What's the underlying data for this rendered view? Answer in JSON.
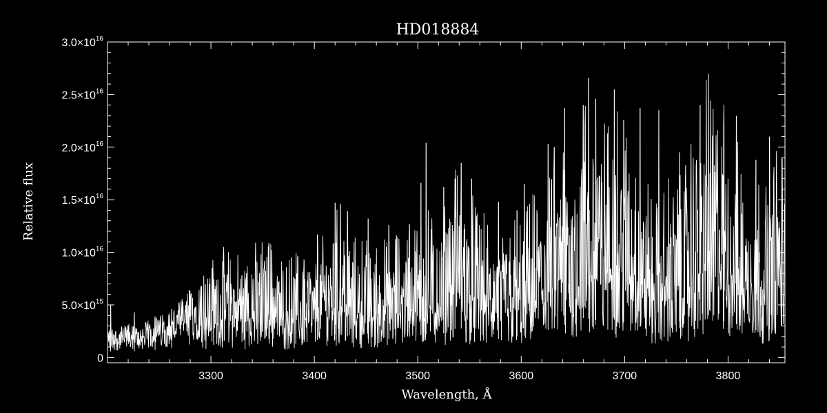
{
  "chart_data": {
    "type": "line",
    "title": "HD018884",
    "xlabel": "Wavelength, Å",
    "ylabel": "Relative flux",
    "xlim": [
      3200,
      3855
    ],
    "ylim": [
      -500000000000000.0,
      3e+16
    ],
    "x_ticks": [
      3300,
      3400,
      3500,
      3600,
      3700,
      3800
    ],
    "x_tick_labels": [
      "3300",
      "3400",
      "3500",
      "3600",
      "3700",
      "3800"
    ],
    "y_ticks": [
      0,
      5000000000000000.0,
      1e+16,
      1.5e+16,
      2e+16,
      2.5e+16,
      3e+16
    ],
    "y_tick_labels": [
      {
        "mantissa": "0",
        "times": "",
        "exp": ""
      },
      {
        "mantissa": "5.0",
        "times": "×10",
        "exp": "15"
      },
      {
        "mantissa": "1.0",
        "times": "×10",
        "exp": "16"
      },
      {
        "mantissa": "1.5",
        "times": "×10",
        "exp": "16"
      },
      {
        "mantissa": "2.0",
        "times": "×10",
        "exp": "16"
      },
      {
        "mantissa": "2.5",
        "times": "×10",
        "exp": "16"
      },
      {
        "mantissa": "3.0",
        "times": "×10",
        "exp": "16"
      }
    ],
    "series": [
      {
        "values_unit": "relative flux",
        "x": [
          3200,
          3210,
          3220,
          3230,
          3240,
          3250,
          3260,
          3270,
          3280,
          3290,
          3300,
          3310,
          3320,
          3330,
          3340,
          3350,
          3360,
          3370,
          3380,
          3390,
          3400,
          3410,
          3420,
          3430,
          3440,
          3450,
          3460,
          3470,
          3480,
          3490,
          3500,
          3510,
          3520,
          3530,
          3540,
          3550,
          3560,
          3570,
          3580,
          3590,
          3600,
          3610,
          3620,
          3630,
          3640,
          3650,
          3660,
          3670,
          3680,
          3690,
          3700,
          3710,
          3720,
          3730,
          3740,
          3750,
          3760,
          3770,
          3780,
          3790,
          3800,
          3810,
          3820,
          3830,
          3840,
          3850,
          3855
        ],
        "y": [
          2000000000000000.0,
          1800000000000000.0,
          2100000000000000.0,
          1900000000000000.0,
          2300000000000000.0,
          2600000000000000.0,
          2900000000000000.0,
          3500000000000000.0,
          4200000000000000.0,
          4800000000000000.0,
          5000000000000000.0,
          5300000000000000.0,
          5500000000000000.0,
          5000000000000000.0,
          5400000000000000.0,
          6000000000000000.0,
          5800000000000000.0,
          4500000000000000.0,
          5200000000000000.0,
          5600000000000000.0,
          5200000000000000.0,
          6500000000000000.0,
          7500000000000000.0,
          7000000000000000.0,
          5800000000000000.0,
          6000000000000000.0,
          5500000000000000.0,
          5800000000000000.0,
          6200000000000000.0,
          6500000000000000.0,
          7000000000000000.0,
          7500000000000000.0,
          6800000000000000.0,
          8500000000000000.0,
          9500000000000000.0,
          8000000000000000.0,
          7500000000000000.0,
          6000000000000000.0,
          5800000000000000.0,
          7000000000000000.0,
          6500000000000000.0,
          7800000000000000.0,
          8500000000000000.0,
          9000000000000000.0,
          1.05e+16,
          1e+16,
          1.25e+16,
          1.2e+16,
          1.15e+16,
          1.2e+16,
          1.1e+16,
          1.05e+16,
          9000000000000000.0,
          7500000000000000.0,
          8500000000000000.0,
          9000000000000000.0,
          1e+16,
          1.1e+16,
          1.35e+16,
          1.25e+16,
          1.1e+16,
          1.05e+16,
          9000000000000000.0,
          8500000000000000.0,
          9000000000000000.0,
          1.05e+16,
          1e+16
        ],
        "spikes": [
          [
            3203,
            5000000000000000.0
          ],
          [
            3226,
            4300000000000000.0
          ],
          [
            3246,
            3900000000000000.0
          ],
          [
            3262,
            4600000000000000.0
          ],
          [
            3279,
            6400000000000000.0
          ],
          [
            3291,
            6800000000000000.0
          ],
          [
            3301,
            8500000000000000.0
          ],
          [
            3313,
            7900000000000000.0
          ],
          [
            3330,
            7800000000000000.0
          ],
          [
            3352,
            9200000000000000.0
          ],
          [
            3356,
            1.09e+16
          ],
          [
            3378,
            9500000000000000.0
          ],
          [
            3390,
            9300000000000000.0
          ],
          [
            3403,
            1.17e+16
          ],
          [
            3420,
            1.47e+16
          ],
          [
            3425,
            1.46e+16
          ],
          [
            3432,
            1.39e+16
          ],
          [
            3452,
            1.32e+16
          ],
          [
            3472,
            1.26e+16
          ],
          [
            3492,
            1.27e+16
          ],
          [
            3503,
            1.66e+16
          ],
          [
            3508,
            2.04e+16
          ],
          [
            3525,
            1.62e+16
          ],
          [
            3536,
            1.7e+16
          ],
          [
            3542,
            1.85e+16
          ],
          [
            3552,
            1.7e+16
          ],
          [
            3578,
            1.48e+16
          ],
          [
            3596,
            1.4e+16
          ],
          [
            3603,
            1.65e+16
          ],
          [
            3626,
            2.03e+16
          ],
          [
            3632,
            2e+16
          ],
          [
            3642,
            2.37e+16
          ],
          [
            3660,
            2.4e+16
          ],
          [
            3665,
            2.66e+16
          ],
          [
            3672,
            2.46e+16
          ],
          [
            3690,
            2.55e+16
          ],
          [
            3699,
            2.26e+16
          ],
          [
            3715,
            2.37e+16
          ],
          [
            3733,
            2.35e+16
          ],
          [
            3753,
            1.95e+16
          ],
          [
            3773,
            2.4e+16
          ],
          [
            3781,
            2.7e+16
          ],
          [
            3796,
            2.4e+16
          ],
          [
            3808,
            2.3e+16
          ],
          [
            3827,
            1.88e+16
          ],
          [
            3840,
            2.1e+16
          ],
          [
            3852,
            1.9e+16
          ]
        ]
      }
    ]
  },
  "colors": {
    "background": "#000000",
    "foreground": "#ffffff"
  }
}
